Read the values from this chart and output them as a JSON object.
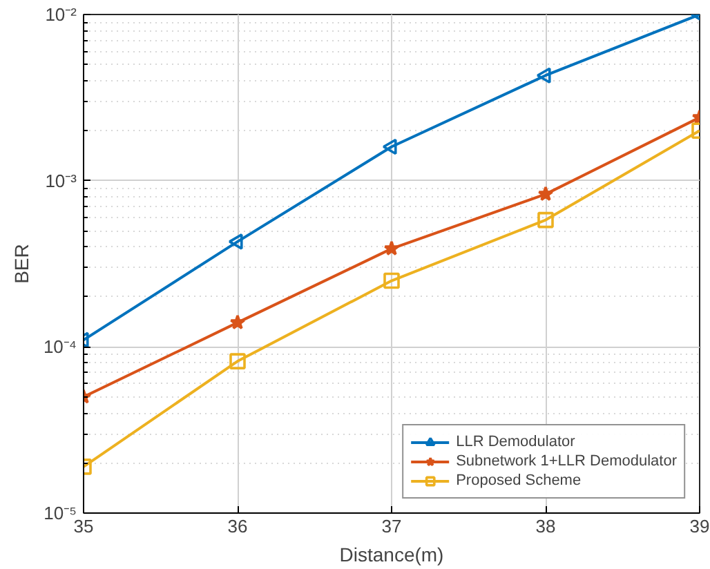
{
  "chart_data": {
    "type": "line",
    "xlabel": "Distance(m)",
    "ylabel": "BER",
    "log": "y",
    "grid": true,
    "legend": "bottom right",
    "line_style": "solid",
    "x": [
      35,
      36,
      37,
      38,
      39
    ],
    "xlim": [
      35,
      39
    ],
    "xticks": [
      35,
      36,
      37,
      38,
      39
    ],
    "ylim": [
      1e-05,
      0.01
    ],
    "yticks": [
      {
        "value": 1e-05,
        "label": "10⁻⁵"
      },
      {
        "value": 0.0001,
        "label": "10⁻⁴"
      },
      {
        "value": 0.001,
        "label": "10⁻³"
      },
      {
        "value": 0.01,
        "label": "10⁻²"
      }
    ],
    "series": [
      {
        "name": "LLR Demodulator",
        "color": "#0072bd",
        "marker": "triangle",
        "values": [
          0.00011,
          0.00043,
          0.0016,
          0.0043,
          0.01
        ]
      },
      {
        "name": "Subnetwork 1+LLR Demodulator",
        "color": "#d95319",
        "marker": "star",
        "values": [
          5e-05,
          0.00014,
          0.00039,
          0.00083,
          0.0024
        ]
      },
      {
        "name": "Proposed Scheme",
        "color": "#edb120",
        "marker": "square",
        "values": [
          1.9e-05,
          8.2e-05,
          0.00025,
          0.00058,
          0.002
        ]
      }
    ]
  }
}
